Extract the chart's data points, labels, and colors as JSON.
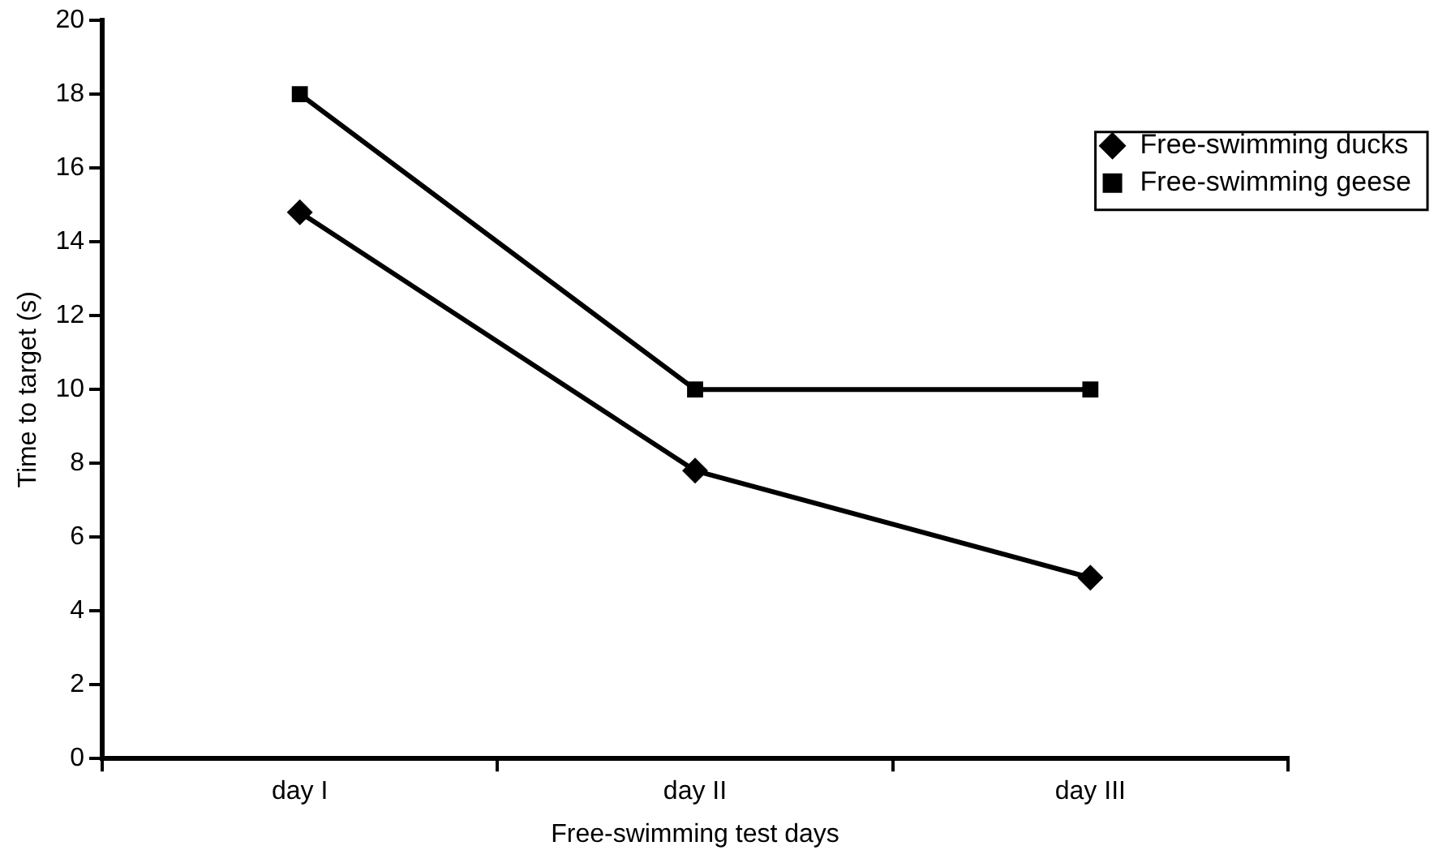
{
  "chart_data": {
    "type": "line",
    "xlabel": "Free-swimming test days",
    "ylabel": "Time to target (s)",
    "categories": [
      "day I",
      "day II",
      "day III"
    ],
    "series": [
      {
        "name": "Free-swimming ducks",
        "color": "#000000",
        "marker": "diamond",
        "values": [
          14.8,
          7.8,
          4.9
        ]
      },
      {
        "name": "Free-swimming geese",
        "color": "#000000",
        "marker": "square",
        "values": [
          18,
          10,
          10
        ]
      }
    ],
    "ylim": [
      0,
      20
    ],
    "yticks": [
      0,
      2,
      4,
      6,
      8,
      10,
      12,
      14,
      16,
      18,
      20
    ],
    "grid": false,
    "legend": "top right",
    "line_style": "solid"
  }
}
